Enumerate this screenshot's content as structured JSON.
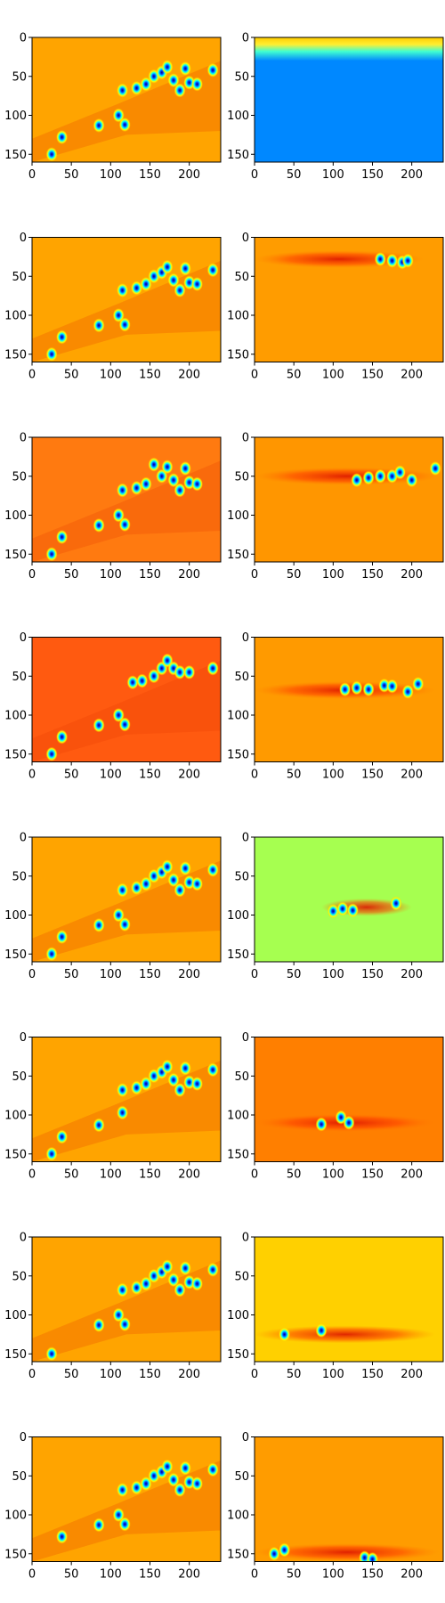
{
  "chart_data": {
    "type": "heatmap",
    "description_layout": "8 rows x 2 columns grid of image-style heatmap panels (jet colormap)",
    "colormap": "jet",
    "axes": {
      "x_ticks": [
        0,
        50,
        100,
        150,
        200
      ],
      "y_ticks": [
        0,
        50,
        100,
        150
      ],
      "x_range": [
        0,
        240
      ],
      "y_range": [
        0,
        160
      ],
      "y_inverted": true
    },
    "panels": [
      {
        "row": 1,
        "col": "left",
        "base": "#ffa400",
        "band_y": null,
        "blobs": [
          [
            25,
            150
          ],
          [
            38,
            128
          ],
          [
            85,
            113
          ],
          [
            110,
            100
          ],
          [
            118,
            112
          ],
          [
            115,
            68
          ],
          [
            133,
            65
          ],
          [
            145,
            60
          ],
          [
            155,
            50
          ],
          [
            165,
            45
          ],
          [
            172,
            38
          ],
          [
            180,
            55
          ],
          [
            188,
            68
          ],
          [
            195,
            40
          ],
          [
            200,
            58
          ],
          [
            210,
            60
          ],
          [
            230,
            42
          ]
        ]
      },
      {
        "row": 1,
        "col": "right",
        "base": "#0088ff",
        "top_band": true,
        "band_y": null,
        "blobs": []
      },
      {
        "row": 2,
        "col": "left",
        "base": "#ffa400",
        "band_y": null,
        "blobs": [
          [
            25,
            150
          ],
          [
            38,
            128
          ],
          [
            85,
            113
          ],
          [
            110,
            100
          ],
          [
            118,
            112
          ],
          [
            115,
            68
          ],
          [
            133,
            65
          ],
          [
            145,
            60
          ],
          [
            155,
            50
          ],
          [
            165,
            45
          ],
          [
            172,
            38
          ],
          [
            180,
            55
          ],
          [
            188,
            68
          ],
          [
            195,
            40
          ],
          [
            200,
            58
          ],
          [
            210,
            60
          ],
          [
            230,
            42
          ]
        ]
      },
      {
        "row": 2,
        "col": "right",
        "base": "#ff9c00",
        "band_y": 28,
        "band_x": [
          0,
          215
        ],
        "blobs": [
          [
            160,
            28
          ],
          [
            175,
            30
          ],
          [
            188,
            32
          ],
          [
            195,
            30
          ]
        ]
      },
      {
        "row": 3,
        "col": "left",
        "base": "#ff7a10",
        "band_y": null,
        "blobs": [
          [
            25,
            150
          ],
          [
            38,
            128
          ],
          [
            85,
            113
          ],
          [
            110,
            100
          ],
          [
            118,
            112
          ],
          [
            115,
            68
          ],
          [
            133,
            65
          ],
          [
            145,
            60
          ],
          [
            155,
            35
          ],
          [
            165,
            50
          ],
          [
            172,
            38
          ],
          [
            180,
            55
          ],
          [
            188,
            68
          ],
          [
            195,
            40
          ],
          [
            200,
            58
          ],
          [
            210,
            60
          ]
        ]
      },
      {
        "row": 3,
        "col": "right",
        "base": "#ff9600",
        "band_y": 50,
        "band_x": [
          0,
          235
        ],
        "blobs": [
          [
            130,
            55
          ],
          [
            145,
            52
          ],
          [
            160,
            50
          ],
          [
            175,
            50
          ],
          [
            185,
            45
          ],
          [
            200,
            55
          ],
          [
            230,
            40
          ]
        ]
      },
      {
        "row": 4,
        "col": "left",
        "base": "#ff5a10",
        "band_y": null,
        "blobs": [
          [
            25,
            150
          ],
          [
            38,
            128
          ],
          [
            85,
            113
          ],
          [
            110,
            100
          ],
          [
            118,
            112
          ],
          [
            128,
            58
          ],
          [
            140,
            56
          ],
          [
            155,
            50
          ],
          [
            165,
            40
          ],
          [
            172,
            30
          ],
          [
            180,
            40
          ],
          [
            188,
            45
          ],
          [
            200,
            45
          ],
          [
            230,
            40
          ]
        ]
      },
      {
        "row": 4,
        "col": "right",
        "base": "#ff9a00",
        "band_y": 68,
        "band_x": [
          0,
          230
        ],
        "blobs": [
          [
            115,
            67
          ],
          [
            130,
            65
          ],
          [
            145,
            67
          ],
          [
            165,
            62
          ],
          [
            175,
            63
          ],
          [
            195,
            70
          ],
          [
            208,
            60
          ]
        ]
      },
      {
        "row": 5,
        "col": "left",
        "base": "#ffa400",
        "band_y": null,
        "blobs": [
          [
            25,
            150
          ],
          [
            38,
            128
          ],
          [
            85,
            113
          ],
          [
            110,
            100
          ],
          [
            118,
            112
          ],
          [
            115,
            68
          ],
          [
            133,
            65
          ],
          [
            145,
            60
          ],
          [
            155,
            50
          ],
          [
            165,
            45
          ],
          [
            172,
            38
          ],
          [
            180,
            55
          ],
          [
            188,
            68
          ],
          [
            195,
            40
          ],
          [
            200,
            58
          ],
          [
            210,
            60
          ],
          [
            230,
            42
          ]
        ]
      },
      {
        "row": 5,
        "col": "right",
        "base": "#a6ff50",
        "band_y": 90,
        "band_x": [
          85,
          200
        ],
        "blobs": [
          [
            100,
            95
          ],
          [
            112,
            92
          ],
          [
            125,
            94
          ],
          [
            180,
            85
          ]
        ]
      },
      {
        "row": 6,
        "col": "left",
        "base": "#ffa400",
        "band_y": null,
        "blobs": [
          [
            25,
            150
          ],
          [
            38,
            128
          ],
          [
            85,
            113
          ],
          [
            115,
            97
          ],
          [
            115,
            68
          ],
          [
            133,
            65
          ],
          [
            145,
            60
          ],
          [
            155,
            50
          ],
          [
            165,
            45
          ],
          [
            172,
            38
          ],
          [
            180,
            55
          ],
          [
            188,
            68
          ],
          [
            195,
            40
          ],
          [
            200,
            58
          ],
          [
            210,
            60
          ],
          [
            230,
            42
          ]
        ]
      },
      {
        "row": 6,
        "col": "right",
        "base": "#ff7f00",
        "band_y": 110,
        "band_x": [
          0,
          230
        ],
        "blobs": [
          [
            85,
            112
          ],
          [
            110,
            103
          ],
          [
            120,
            110
          ]
        ]
      },
      {
        "row": 7,
        "col": "left",
        "base": "#ffa400",
        "band_y": null,
        "blobs": [
          [
            25,
            150
          ],
          [
            85,
            113
          ],
          [
            110,
            100
          ],
          [
            118,
            112
          ],
          [
            115,
            68
          ],
          [
            133,
            65
          ],
          [
            145,
            60
          ],
          [
            155,
            50
          ],
          [
            165,
            45
          ],
          [
            172,
            38
          ],
          [
            180,
            55
          ],
          [
            188,
            68
          ],
          [
            195,
            40
          ],
          [
            200,
            58
          ],
          [
            210,
            60
          ],
          [
            230,
            42
          ]
        ]
      },
      {
        "row": 7,
        "col": "right",
        "base": "#ffd000",
        "band_y": 125,
        "band_x": [
          0,
          230
        ],
        "blobs": [
          [
            38,
            125
          ],
          [
            85,
            120
          ]
        ]
      },
      {
        "row": 8,
        "col": "left",
        "base": "#ffa400",
        "band_y": null,
        "blobs": [
          [
            38,
            128
          ],
          [
            85,
            113
          ],
          [
            110,
            100
          ],
          [
            118,
            112
          ],
          [
            115,
            68
          ],
          [
            133,
            65
          ],
          [
            145,
            60
          ],
          [
            155,
            50
          ],
          [
            165,
            45
          ],
          [
            172,
            38
          ],
          [
            180,
            55
          ],
          [
            188,
            68
          ],
          [
            195,
            40
          ],
          [
            200,
            58
          ],
          [
            210,
            60
          ],
          [
            230,
            42
          ]
        ]
      },
      {
        "row": 8,
        "col": "right",
        "base": "#ff9c00",
        "band_y": 148,
        "band_x": [
          0,
          235
        ],
        "blobs": [
          [
            25,
            150
          ],
          [
            38,
            145
          ],
          [
            140,
            155
          ],
          [
            150,
            157
          ]
        ]
      }
    ]
  }
}
